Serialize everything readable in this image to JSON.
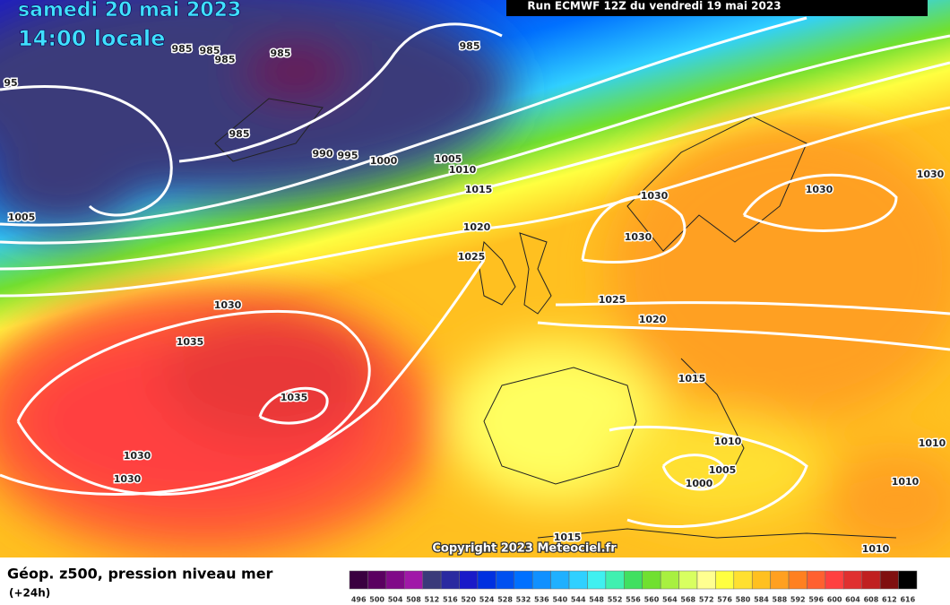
{
  "header": {
    "date": "samedi 20 mai 2023",
    "time": "14:00 locale",
    "run": "Run ECMWF 12Z du vendredi 19 mai 2023"
  },
  "map": {
    "isobar_labels": [
      "985",
      "985",
      "985",
      "985",
      "985",
      "985",
      "95",
      "990",
      "995",
      "1000",
      "1005",
      "1010",
      "1015",
      "1020",
      "1025",
      "1005",
      "1030",
      "1035",
      "1035",
      "1030",
      "1030",
      "1030",
      "1030",
      "1030",
      "1030",
      "1025",
      "1020",
      "1015",
      "1010",
      "1005",
      "1000",
      "1010",
      "1015",
      "1010",
      "1010"
    ],
    "copyright": "Copyright 2023 Meteociel.fr"
  },
  "footer": {
    "title": "Géop. z500, pression niveau mer",
    "lead": "(+24h)"
  },
  "scale": {
    "values": [
      496,
      500,
      504,
      508,
      512,
      516,
      520,
      524,
      528,
      532,
      536,
      540,
      544,
      548,
      552,
      556,
      560,
      564,
      568,
      572,
      576,
      580,
      584,
      588,
      592,
      596,
      600,
      604,
      608,
      612,
      616
    ],
    "colors": [
      "#3a0040",
      "#5a0060",
      "#800a88",
      "#a018a8",
      "#3a3a7a",
      "#2a2aa0",
      "#1a1ac8",
      "#0030e0",
      "#0050f0",
      "#0070ff",
      "#1090ff",
      "#20b0ff",
      "#30d0ff",
      "#40f0f0",
      "#40f0b0",
      "#40e060",
      "#70e030",
      "#a8f040",
      "#d8ff60",
      "#ffff90",
      "#ffff40",
      "#ffe030",
      "#ffc020",
      "#ffa020",
      "#ff8020",
      "#ff6030",
      "#ff4040",
      "#e03030",
      "#c02020",
      "#801010",
      "#000000"
    ]
  }
}
